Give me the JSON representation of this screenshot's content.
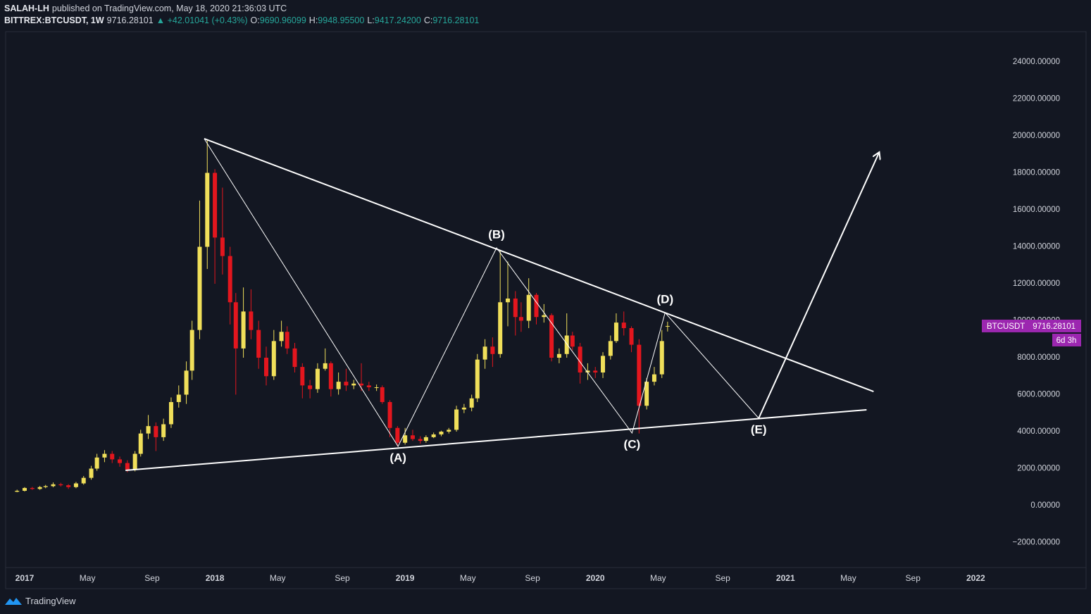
{
  "header": {
    "author": "SALAH-LH",
    "published": "published on TradingView.com, May 18, 2020 21:36:03 UTC",
    "symbol": "BITTREX:BTCUSDT, 1W",
    "last": "9716.28101",
    "change": "▲ +42.01041 (+0.43%)",
    "ohlc": [
      {
        "label": "O:",
        "value": "9690.96099"
      },
      {
        "label": "H:",
        "value": "9948.95500"
      },
      {
        "label": "L:",
        "value": "9417.24200"
      },
      {
        "label": "C:",
        "value": "9716.28101"
      }
    ]
  },
  "footer": "TradingView",
  "chart_data": {
    "type": "candlestick",
    "up_color": "#f0df5a",
    "down_color": "#e3161e",
    "line_color": "#ffffff",
    "tag_color": "#9c27b0",
    "tag_symbol": "BTCUSDT",
    "countdown": "6d 3h",
    "xlim": [
      2016.9,
      2022.58
    ],
    "ylim": [
      -3352,
      25638
    ],
    "grid": false,
    "xticks": [
      {
        "value": 2017,
        "label": "2017"
      },
      {
        "value": 2017.33,
        "label": "May"
      },
      {
        "value": 2017.67,
        "label": "Sep"
      },
      {
        "value": 2018,
        "label": "2018"
      },
      {
        "value": 2018.33,
        "label": "May"
      },
      {
        "value": 2018.67,
        "label": "Sep"
      },
      {
        "value": 2019,
        "label": "2019"
      },
      {
        "value": 2019.33,
        "label": "May"
      },
      {
        "value": 2019.67,
        "label": "Sep"
      },
      {
        "value": 2020,
        "label": "2020"
      },
      {
        "value": 2020.33,
        "label": "May"
      },
      {
        "value": 2020.67,
        "label": "Sep"
      },
      {
        "value": 2021,
        "label": "2021"
      },
      {
        "value": 2021.33,
        "label": "May"
      },
      {
        "value": 2021.67,
        "label": "Sep"
      },
      {
        "value": 2022,
        "label": "2022"
      }
    ],
    "yticks": [
      {
        "value": -2000,
        "label": "−2000.00000"
      },
      {
        "value": 0,
        "label": "0.00000"
      },
      {
        "value": 2000,
        "label": "2000.00000"
      },
      {
        "value": 4000,
        "label": "4000.00000"
      },
      {
        "value": 6000,
        "label": "6000.00000"
      },
      {
        "value": 8000,
        "label": "8000.00000"
      },
      {
        "value": 10000,
        "label": "10000.00000"
      },
      {
        "value": 12000,
        "label": "12000.00000"
      },
      {
        "value": 14000,
        "label": "14000.00000"
      },
      {
        "value": 16000,
        "label": "16000.00000"
      },
      {
        "value": 18000,
        "label": "18000.00000"
      },
      {
        "value": 20000,
        "label": "20000.00000"
      },
      {
        "value": 22000,
        "label": "22000.00000"
      },
      {
        "value": 24000,
        "label": "24000.00000"
      }
    ],
    "x": [
      2016.96,
      2017.0,
      2017.04,
      2017.08,
      2017.11,
      2017.15,
      2017.19,
      2017.23,
      2017.27,
      2017.31,
      2017.35,
      2017.38,
      2017.42,
      2017.46,
      2017.5,
      2017.54,
      2017.58,
      2017.61,
      2017.65,
      2017.69,
      2017.73,
      2017.77,
      2017.81,
      2017.85,
      2017.88,
      2017.92,
      2017.96,
      2018.0,
      2018.04,
      2018.08,
      2018.11,
      2018.15,
      2018.19,
      2018.23,
      2018.27,
      2018.31,
      2018.35,
      2018.38,
      2018.42,
      2018.46,
      2018.5,
      2018.54,
      2018.58,
      2018.61,
      2018.65,
      2018.69,
      2018.73,
      2018.77,
      2018.81,
      2018.85,
      2018.88,
      2018.92,
      2018.96,
      2019.0,
      2019.04,
      2019.08,
      2019.11,
      2019.15,
      2019.19,
      2019.23,
      2019.27,
      2019.31,
      2019.35,
      2019.38,
      2019.42,
      2019.46,
      2019.5,
      2019.54,
      2019.58,
      2019.61,
      2019.65,
      2019.69,
      2019.73,
      2019.77,
      2019.81,
      2019.85,
      2019.88,
      2019.92,
      2019.96,
      2020.0,
      2020.04,
      2020.08,
      2020.11,
      2020.15,
      2020.19,
      2020.23,
      2020.27,
      2020.31,
      2020.35,
      2020.38
    ],
    "candles": [
      [
        750,
        860,
        720,
        800
      ],
      [
        800,
        1000,
        760,
        950
      ],
      [
        950,
        1010,
        850,
        900
      ],
      [
        900,
        1060,
        850,
        1000
      ],
      [
        1000,
        1120,
        940,
        1050
      ],
      [
        1050,
        1250,
        990,
        1150
      ],
      [
        1150,
        1230,
        1030,
        1100
      ],
      [
        1100,
        1160,
        900,
        1000
      ],
      [
        1000,
        1280,
        940,
        1200
      ],
      [
        1200,
        1600,
        1130,
        1500
      ],
      [
        1500,
        2150,
        1400,
        2000
      ],
      [
        2000,
        2800,
        1880,
        2600
      ],
      [
        2600,
        3000,
        2350,
        2800
      ],
      [
        2800,
        2950,
        2300,
        2500
      ],
      [
        2500,
        2650,
        2100,
        2300
      ],
      [
        2300,
        2450,
        1800,
        1950
      ],
      [
        1950,
        2950,
        1850,
        2800
      ],
      [
        2800,
        4100,
        2650,
        3900
      ],
      [
        3900,
        4900,
        3600,
        4300
      ],
      [
        4300,
        4500,
        2950,
        3700
      ],
      [
        3700,
        4700,
        3500,
        4400
      ],
      [
        4400,
        5850,
        4200,
        5600
      ],
      [
        5600,
        6500,
        5300,
        6000
      ],
      [
        6000,
        7800,
        5500,
        7300
      ],
      [
        7300,
        10000,
        6800,
        9500
      ],
      [
        9500,
        16500,
        9000,
        14000
      ],
      [
        14000,
        19800,
        12800,
        18000
      ],
      [
        18000,
        18200,
        12000,
        14500
      ],
      [
        14500,
        17200,
        12500,
        13500
      ],
      [
        13500,
        14000,
        9800,
        11000
      ],
      [
        11000,
        11500,
        6000,
        8500
      ],
      [
        8500,
        11800,
        8000,
        10500
      ],
      [
        10500,
        11700,
        9000,
        9500
      ],
      [
        9500,
        10000,
        7400,
        8000
      ],
      [
        8000,
        8600,
        6500,
        7000
      ],
      [
        7000,
        9500,
        6800,
        8900
      ],
      [
        8900,
        10000,
        8600,
        9400
      ],
      [
        9400,
        9700,
        8200,
        8500
      ],
      [
        8500,
        8800,
        7200,
        7500
      ],
      [
        7500,
        7700,
        5800,
        6500
      ],
      [
        6500,
        6800,
        5800,
        6300
      ],
      [
        6300,
        7700,
        6100,
        7400
      ],
      [
        7400,
        8500,
        7300,
        7700
      ],
      [
        7700,
        7800,
        5900,
        6300
      ],
      [
        6300,
        7200,
        6000,
        6700
      ],
      [
        6700,
        7400,
        6200,
        6500
      ],
      [
        6500,
        6800,
        6300,
        6600
      ],
      [
        6600,
        7700,
        6200,
        6500
      ],
      [
        6500,
        6700,
        6200,
        6400
      ],
      [
        6400,
        6550,
        6200,
        6400
      ],
      [
        6400,
        6500,
        5500,
        5600
      ],
      [
        5600,
        5700,
        3700,
        4200
      ],
      [
        4200,
        4300,
        3200,
        3400
      ],
      [
        3400,
        4200,
        3300,
        3800
      ],
      [
        3800,
        4100,
        3500,
        3600
      ],
      [
        3600,
        3750,
        3350,
        3500
      ],
      [
        3500,
        3800,
        3400,
        3700
      ],
      [
        3700,
        3950,
        3650,
        3850
      ],
      [
        3850,
        4050,
        3750,
        4000
      ],
      [
        4000,
        4200,
        3900,
        4100
      ],
      [
        4100,
        5400,
        4000,
        5200
      ],
      [
        5200,
        5500,
        5000,
        5300
      ],
      [
        5300,
        6000,
        5100,
        5800
      ],
      [
        5800,
        8200,
        5600,
        7900
      ],
      [
        7900,
        9000,
        7400,
        8600
      ],
      [
        8600,
        9100,
        7500,
        8200
      ],
      [
        8200,
        13800,
        8000,
        11000
      ],
      [
        11000,
        13200,
        9700,
        11200
      ],
      [
        11200,
        11600,
        9200,
        10200
      ],
      [
        10200,
        11000,
        9400,
        10000
      ],
      [
        10000,
        12300,
        9600,
        11400
      ],
      [
        11400,
        11500,
        9800,
        10200
      ],
      [
        10200,
        10900,
        9900,
        10300
      ],
      [
        10300,
        10400,
        7800,
        8000
      ],
      [
        8000,
        8500,
        7700,
        8200
      ],
      [
        8200,
        10400,
        8000,
        9200
      ],
      [
        9200,
        9400,
        8400,
        8600
      ],
      [
        8600,
        8800,
        6600,
        7200
      ],
      [
        7200,
        7700,
        6800,
        7300
      ],
      [
        7300,
        7500,
        6900,
        7200
      ],
      [
        7200,
        8300,
        6900,
        8100
      ],
      [
        8100,
        9200,
        7900,
        8900
      ],
      [
        8900,
        10400,
        8800,
        9900
      ],
      [
        9900,
        10500,
        9200,
        9600
      ],
      [
        9600,
        9700,
        8300,
        8700
      ],
      [
        8700,
        9000,
        3900,
        5400
      ],
      [
        5400,
        6900,
        5200,
        6700
      ],
      [
        6700,
        7500,
        6500,
        7100
      ],
      [
        7100,
        9500,
        6900,
        8900
      ],
      [
        9690.96099,
        9948.955,
        9417.242,
        9716.28101
      ]
    ],
    "trendlines": [
      [
        [
          2017.944,
          19848
        ],
        [
          2021.463,
          6171
        ]
      ],
      [
        [
          2017.53,
          1905
        ],
        [
          2021.426,
          5181
        ]
      ]
    ],
    "wave": [
      [
        2017.944,
        19848
      ],
      [
        2018.963,
        3200
      ],
      [
        2019.481,
        13943
      ],
      [
        2020.193,
        3924
      ],
      [
        2020.367,
        10438
      ],
      [
        2020.859,
        4724
      ]
    ],
    "arrow": [
      [
        2020.859,
        4724
      ],
      [
        2021.493,
        19124
      ]
    ],
    "annotations": [
      {
        "label": "(A)",
        "x": 2018.963,
        "y": 3200,
        "pos": "below"
      },
      {
        "label": "(B)",
        "x": 2019.481,
        "y": 13943,
        "pos": "above"
      },
      {
        "label": "(C)",
        "x": 2020.193,
        "y": 3924,
        "pos": "below"
      },
      {
        "label": "(D)",
        "x": 2020.367,
        "y": 10438,
        "pos": "above"
      },
      {
        "label": "(E)",
        "x": 2020.859,
        "y": 4724,
        "pos": "below"
      }
    ]
  }
}
